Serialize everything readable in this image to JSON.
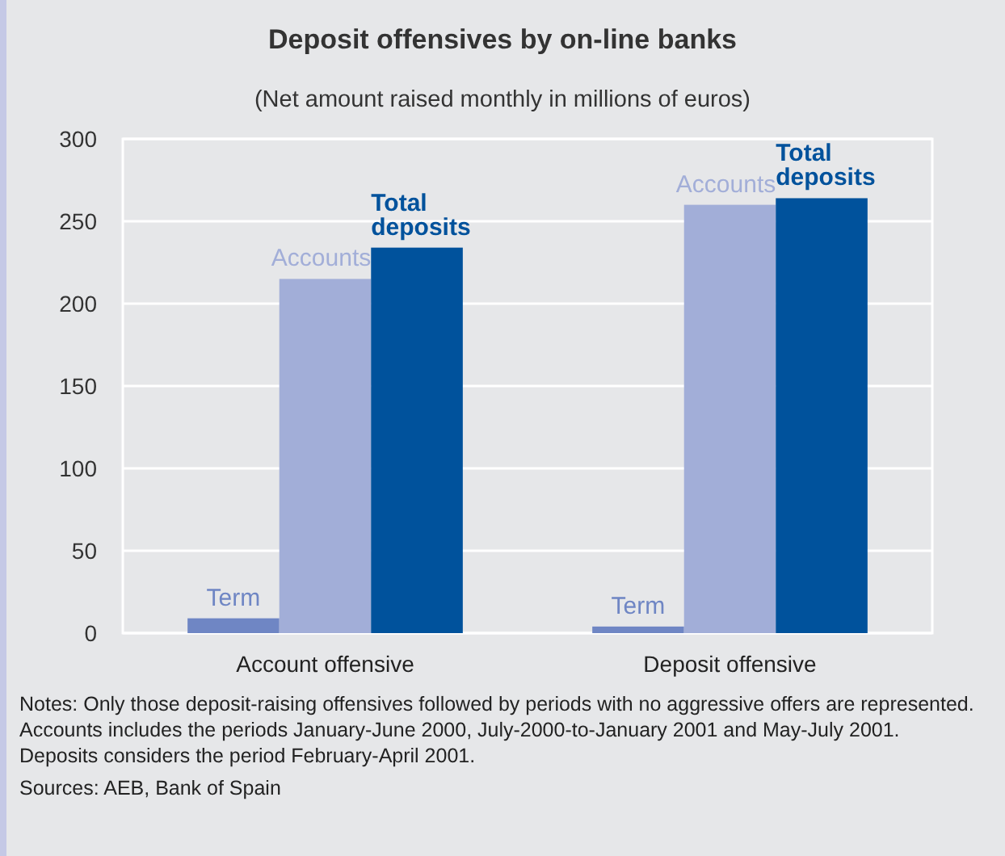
{
  "chart_data": {
    "type": "bar",
    "title": "Deposit offensives by on-line banks",
    "subtitle": "(Net amount raised monthly in millions of euros)",
    "categories": [
      "Account offensive",
      "Deposit offensive"
    ],
    "series": [
      {
        "name": "Term",
        "color": "#6f86c4",
        "values": [
          9,
          4
        ]
      },
      {
        "name": "Accounts",
        "color": "#a2aed8",
        "values": [
          215,
          260
        ]
      },
      {
        "name": "Total deposits",
        "color": "#00529c",
        "values": [
          234,
          264
        ]
      }
    ],
    "ylim": [
      0,
      300
    ],
    "yticks": [
      0,
      50,
      100,
      150,
      200,
      250,
      300
    ],
    "grid": "y",
    "annotations": [
      "Notes: Only those deposit-raising offensives followed by periods with no aggressive offers are represented. Accounts includes the periods January-June 2000, July-2000-to-January 2001 and May-July 2001. Deposits considers the period February-April 2001.",
      "Sources: AEB, Bank of Spain"
    ]
  }
}
